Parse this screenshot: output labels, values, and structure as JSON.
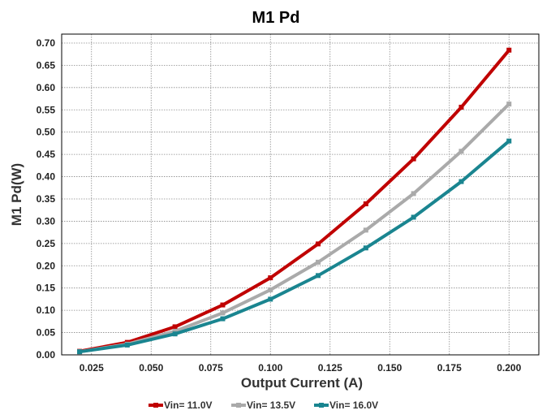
{
  "chart_data": {
    "type": "line",
    "title": "M1 Pd",
    "xlabel": "Output Current (A)",
    "ylabel": "M1 Pd(W)",
    "xlim": [
      0.0125,
      0.2125
    ],
    "ylim": [
      0.0,
      0.72
    ],
    "xticks": [
      "0.025",
      "0.050",
      "0.075",
      "0.100",
      "0.125",
      "0.150",
      "0.175",
      "0.200"
    ],
    "xtick_values": [
      0.025,
      0.05,
      0.075,
      0.1,
      0.125,
      0.15,
      0.175,
      0.2
    ],
    "yticks": [
      "0.00",
      "0.05",
      "0.10",
      "0.15",
      "0.20",
      "0.25",
      "0.30",
      "0.35",
      "0.40",
      "0.45",
      "0.50",
      "0.55",
      "0.60",
      "0.65",
      "0.70"
    ],
    "ytick_values": [
      0.0,
      0.05,
      0.1,
      0.15,
      0.2,
      0.25,
      0.3,
      0.35,
      0.4,
      0.45,
      0.5,
      0.55,
      0.6,
      0.65,
      0.7
    ],
    "grid": true,
    "legend_position": "bottom",
    "x": [
      0.02,
      0.04,
      0.06,
      0.08,
      0.1,
      0.12,
      0.14,
      0.16,
      0.18,
      0.2
    ],
    "series": [
      {
        "name": "Vin= 11.0V",
        "color": "#c00000",
        "values": [
          0.008,
          0.028,
          0.063,
          0.112,
          0.173,
          0.249,
          0.339,
          0.44,
          0.556,
          0.684
        ]
      },
      {
        "name": "Vin= 13.5V",
        "color": "#aaaaaa",
        "values": [
          0.007,
          0.024,
          0.053,
          0.094,
          0.146,
          0.208,
          0.28,
          0.362,
          0.457,
          0.563
        ]
      },
      {
        "name": "Vin= 16.0V",
        "color": "#1a8590",
        "values": [
          0.007,
          0.022,
          0.047,
          0.081,
          0.125,
          0.178,
          0.24,
          0.309,
          0.389,
          0.48
        ]
      }
    ]
  }
}
